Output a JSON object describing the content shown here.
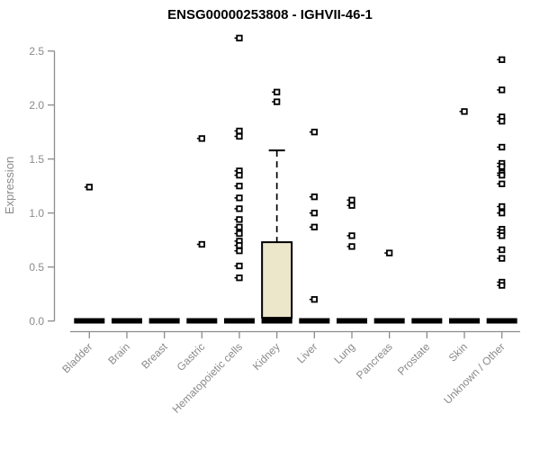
{
  "chart_data": {
    "type": "boxplot",
    "title": "ENSG00000253808 - IGHVII-46-1",
    "ylabel": "Expression",
    "ylim": [
      0,
      2.5
    ],
    "ytick_values": [
      0,
      0.5,
      1,
      1.5,
      2,
      2.5
    ],
    "ytick_labels": [
      "0.0",
      "0.5",
      "1.0",
      "1.5",
      "2.0",
      "2.5"
    ],
    "categories": [
      "Bladder",
      "Brain",
      "Breast",
      "Gastric",
      "Hematopoietic cells",
      "Kidney",
      "Liver",
      "Lung",
      "Pancreas",
      "Prostate",
      "Skin",
      "Unknown / Other"
    ],
    "collapsed_zero_bar_all_categories": true,
    "collapsed_box_value": 0,
    "boxes": [
      {
        "category": "Kidney",
        "q1": 0.03,
        "median": 0.0,
        "q3": 0.73,
        "whisker_high": 1.58,
        "outliers": [
          2.12,
          2.03
        ]
      }
    ],
    "points": {
      "Bladder": [
        1.24
      ],
      "Brain": [],
      "Breast": [],
      "Gastric": [
        1.69,
        0.71
      ],
      "Hematopoietic cells": [
        2.62,
        1.76,
        1.71,
        1.39,
        1.35,
        1.25,
        1.14,
        1.04,
        0.94,
        0.87,
        0.81,
        0.74,
        0.7,
        0.65,
        0.51,
        0.4
      ],
      "Kidney": [],
      "Liver": [
        1.75,
        1.15,
        1.0,
        0.87,
        0.2
      ],
      "Lung": [
        1.12,
        1.07,
        0.79,
        0.69
      ],
      "Pancreas": [
        0.63
      ],
      "Prostate": [],
      "Skin": [
        1.94
      ],
      "Unknown / Other": [
        2.42,
        2.14,
        1.89,
        1.85,
        1.61,
        1.46,
        1.43,
        1.37,
        1.35,
        1.27,
        1.06,
        1.0,
        0.85,
        0.82,
        0.79,
        0.66,
        0.58,
        0.36,
        0.33
      ]
    },
    "style": {
      "background": "#FFFFFF",
      "box_fill": "#ECE6CB",
      "axis_color": "#8C8C8C",
      "label_color": "#8A8A8A",
      "marker_color": "#000000",
      "title_color": "#000000"
    },
    "legend": "none",
    "grid": false
  }
}
